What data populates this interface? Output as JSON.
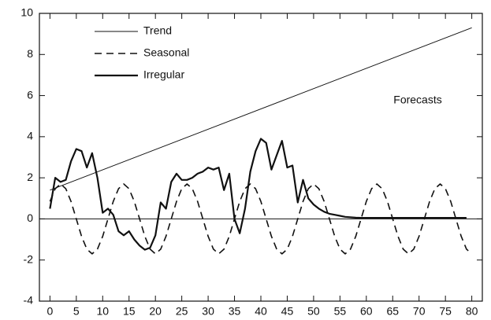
{
  "chart_data": {
    "type": "line",
    "annotations": [
      "Forecasts"
    ],
    "xlim": [
      -2,
      82
    ],
    "xticks": [
      0,
      5,
      10,
      15,
      20,
      25,
      30,
      35,
      40,
      45,
      50,
      55,
      60,
      65,
      70,
      75,
      80
    ],
    "ylim": [
      -4,
      10
    ],
    "yticks": [
      -4,
      -2,
      0,
      2,
      4,
      6,
      8,
      10
    ],
    "legend": "upper left",
    "color": "#111111",
    "series": [
      {
        "name": "Trend",
        "style": "solid",
        "weight": "thin",
        "x": [
          0,
          80
        ],
        "values": [
          1.4,
          9.3
        ]
      },
      {
        "name": "Seasonal",
        "style": "dashed",
        "weight": "medium",
        "x": [
          0,
          1,
          2,
          3,
          4,
          5,
          6,
          7,
          8,
          9,
          10,
          11,
          12,
          13,
          14,
          15,
          16,
          17,
          18,
          19,
          20,
          21,
          22,
          23,
          24,
          25,
          26,
          27,
          28,
          29,
          30,
          31,
          32,
          33,
          34,
          35,
          36,
          37,
          38,
          39,
          40,
          41,
          42,
          43,
          44,
          45,
          46,
          47,
          48,
          49,
          50,
          51,
          52,
          53,
          54,
          55,
          56,
          57,
          58,
          59,
          60,
          61,
          62,
          63,
          64,
          65,
          66,
          67,
          68,
          69,
          70,
          71,
          72,
          73,
          74,
          75,
          76,
          77,
          78,
          79,
          80
        ],
        "values": [
          0.85,
          1.47,
          1.7,
          1.47,
          0.85,
          0,
          -0.85,
          -1.47,
          -1.7,
          -1.47,
          -0.85,
          0,
          0.85,
          1.47,
          1.7,
          1.47,
          0.85,
          0,
          -0.85,
          -1.47,
          -1.7,
          -1.47,
          -0.85,
          0,
          0.85,
          1.47,
          1.7,
          1.47,
          0.85,
          0,
          -0.85,
          -1.47,
          -1.7,
          -1.47,
          -0.85,
          0,
          0.85,
          1.47,
          1.7,
          1.47,
          0.85,
          0,
          -0.85,
          -1.47,
          -1.7,
          -1.47,
          -0.85,
          0,
          0.85,
          1.47,
          1.7,
          1.47,
          0.85,
          0,
          -0.85,
          -1.47,
          -1.7,
          -1.47,
          -0.85,
          0,
          0.85,
          1.47,
          1.7,
          1.47,
          0.85,
          0,
          -0.85,
          -1.47,
          -1.7,
          -1.47,
          -0.85,
          0,
          0.85,
          1.47,
          1.7,
          1.47,
          0.85,
          0,
          -0.85,
          -1.47,
          -1.7
        ]
      },
      {
        "name": "Irregular",
        "style": "solid",
        "weight": "thick",
        "x": [
          0,
          1,
          2,
          3,
          4,
          5,
          6,
          7,
          8,
          9,
          10,
          11,
          12,
          13,
          14,
          15,
          16,
          17,
          18,
          19,
          20,
          21,
          22,
          23,
          24,
          25,
          26,
          27,
          28,
          29,
          30,
          31,
          32,
          33,
          34,
          35,
          36,
          37,
          38,
          39,
          40,
          41,
          42,
          43,
          44,
          45,
          46,
          47,
          48,
          49,
          50,
          51,
          52,
          53,
          54,
          55,
          56,
          57,
          58,
          59,
          60,
          61,
          62,
          63,
          64,
          65,
          66,
          67,
          68,
          69,
          70,
          71,
          72,
          73,
          74,
          75,
          76,
          77,
          78,
          79
        ],
        "values": [
          0.5,
          2.0,
          1.8,
          1.9,
          2.8,
          3.4,
          3.3,
          2.5,
          3.2,
          2.0,
          0.3,
          0.5,
          0.2,
          -0.6,
          -0.8,
          -0.6,
          -1.0,
          -1.3,
          -1.5,
          -1.4,
          -0.8,
          0.8,
          0.5,
          1.8,
          2.2,
          1.9,
          1.9,
          2.0,
          2.2,
          2.3,
          2.5,
          2.4,
          2.5,
          1.4,
          2.2,
          0.0,
          -0.7,
          0.5,
          2.3,
          3.3,
          3.9,
          3.7,
          2.4,
          3.1,
          3.8,
          2.5,
          2.6,
          0.8,
          1.9,
          1.0,
          0.7,
          0.5,
          0.35,
          0.25,
          0.2,
          0.15,
          0.1,
          0.08,
          0.06,
          0.05,
          0.05,
          0.05,
          0.05,
          0.05,
          0.05,
          0.05,
          0.05,
          0.05,
          0.05,
          0.05,
          0.05,
          0.05,
          0.05,
          0.05,
          0.05,
          0.05,
          0.05,
          0.05,
          0.05,
          0.05
        ]
      }
    ]
  }
}
